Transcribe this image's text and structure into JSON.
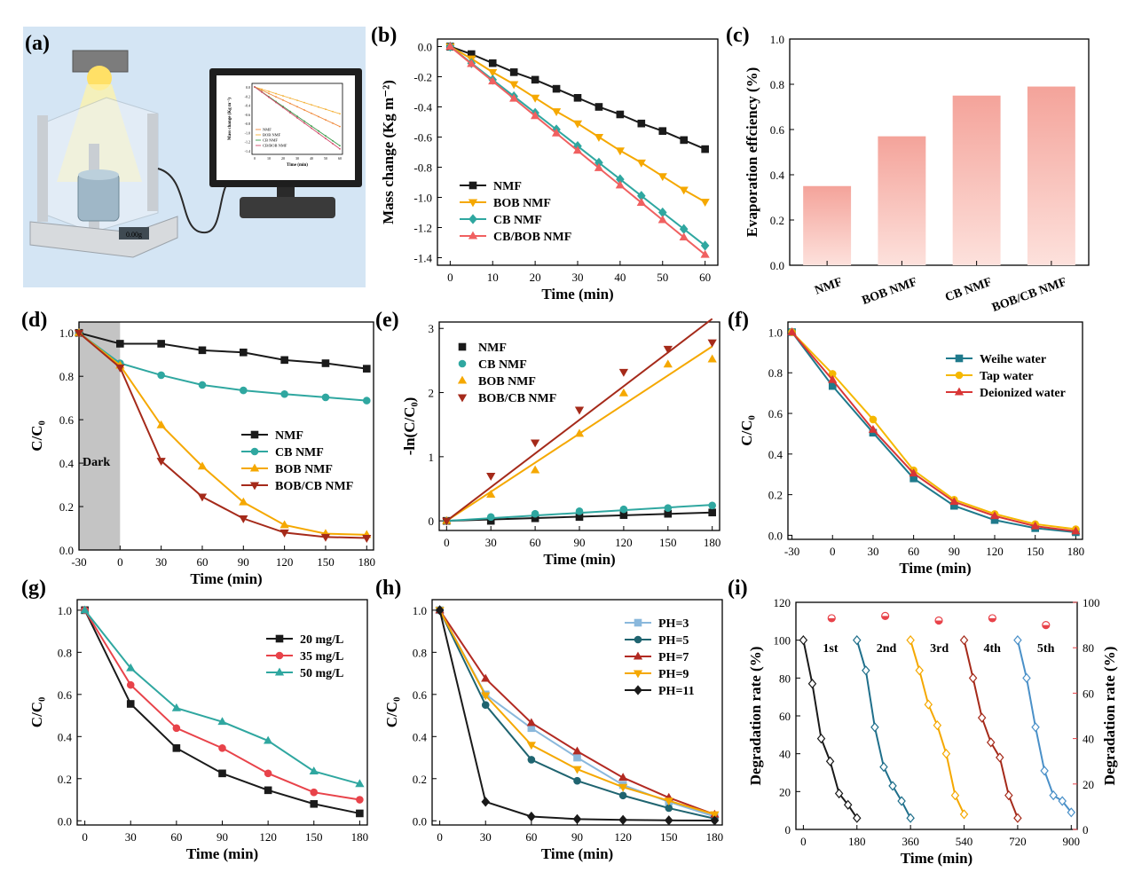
{
  "panel_letters": [
    "(a)",
    "(b)",
    "(c)",
    "(d)",
    "(e)",
    "(f)",
    "(g)",
    "(h)",
    "(i)"
  ],
  "illustration": {
    "balance_display": "0.00g",
    "monitor": {
      "ylabel": "Mass change (Kg m⁻²)",
      "xlabel": "Time (min)",
      "legend": [
        "NMF",
        "BOB NMF",
        "CB NMF",
        "CB/BOB NMF"
      ],
      "yticks": [
        "0.0",
        "-0.2",
        "-0.4",
        "-0.6",
        "-0.8",
        "-1.0",
        "-1.2",
        "-1.4"
      ],
      "xticks": [
        "0",
        "10",
        "20",
        "30",
        "40",
        "50",
        "60"
      ],
      "colors": [
        "#f08a3c",
        "#f4b23a",
        "#3a9a4a",
        "#d24a6a"
      ]
    }
  },
  "chart_data": [
    {
      "id": "b",
      "type": "line",
      "xlabel": "Time (min)",
      "ylabel": "Mass change (Kg m⁻²)",
      "xlim": [
        -3,
        63
      ],
      "ylim": [
        -1.45,
        0.05
      ],
      "xticks": [
        0,
        10,
        20,
        30,
        40,
        50,
        60
      ],
      "yticks": [
        0.0,
        -0.2,
        -0.4,
        -0.6,
        -0.8,
        -1.0,
        -1.2,
        -1.4
      ],
      "ytick_labels": [
        "0.0",
        "-0.2",
        "-0.4",
        "-0.6",
        "-0.8",
        "-1.0",
        "-1.2",
        "-1.4"
      ],
      "legend_position": "bottom-left",
      "series": [
        {
          "name": "NMF",
          "color": "#1a1a1a",
          "marker": "square",
          "x": [
            0,
            5,
            10,
            15,
            20,
            25,
            30,
            35,
            40,
            45,
            50,
            55,
            60
          ],
          "y": [
            0,
            -0.05,
            -0.11,
            -0.17,
            -0.22,
            -0.28,
            -0.34,
            -0.4,
            -0.45,
            -0.51,
            -0.56,
            -0.62,
            -0.68
          ]
        },
        {
          "name": "BOB NMF",
          "color": "#f5a800",
          "marker": "triangle-down",
          "x": [
            0,
            5,
            10,
            15,
            20,
            25,
            30,
            35,
            40,
            45,
            50,
            55,
            60
          ],
          "y": [
            0,
            -0.08,
            -0.17,
            -0.25,
            -0.34,
            -0.43,
            -0.51,
            -0.6,
            -0.69,
            -0.77,
            -0.86,
            -0.95,
            -1.03
          ]
        },
        {
          "name": "CB NMF",
          "color": "#2fa7a0",
          "marker": "diamond",
          "x": [
            0,
            5,
            10,
            15,
            20,
            25,
            30,
            35,
            40,
            45,
            50,
            55,
            60
          ],
          "y": [
            0,
            -0.11,
            -0.22,
            -0.33,
            -0.44,
            -0.55,
            -0.66,
            -0.77,
            -0.88,
            -0.99,
            -1.1,
            -1.21,
            -1.32
          ]
        },
        {
          "name": "CB/BOB NMF",
          "color": "#f06060",
          "marker": "triangle-up",
          "x": [
            0,
            5,
            10,
            15,
            20,
            25,
            30,
            35,
            40,
            45,
            50,
            55,
            60
          ],
          "y": [
            0,
            -0.115,
            -0.23,
            -0.345,
            -0.46,
            -0.575,
            -0.69,
            -0.805,
            -0.92,
            -1.035,
            -1.15,
            -1.265,
            -1.38
          ]
        }
      ]
    },
    {
      "id": "c",
      "type": "bar",
      "ylabel": "Evaporation effciency (%)",
      "ylim": [
        0,
        1.0
      ],
      "yticks": [
        0.0,
        0.2,
        0.4,
        0.6,
        0.8,
        1.0
      ],
      "ytick_labels": [
        "0.0",
        "0.2",
        "0.4",
        "0.6",
        "0.8",
        "1.0"
      ],
      "categories": [
        "NMF",
        "BOB NMF",
        "CB NMF",
        "BOB/CB NMF"
      ],
      "values": [
        0.35,
        0.57,
        0.75,
        0.79
      ],
      "bar_color_top": "#f4a39a",
      "bar_color_bottom": "#fde1dc"
    },
    {
      "id": "d",
      "type": "line",
      "xlabel": "Time (min)",
      "ylabel": "C/C₀",
      "xlim": [
        -30,
        185
      ],
      "ylim": [
        0.0,
        1.05
      ],
      "xticks": [
        -30,
        0,
        30,
        60,
        90,
        120,
        150,
        180
      ],
      "yticks": [
        0.0,
        0.2,
        0.4,
        0.6,
        0.8,
        1.0
      ],
      "ytick_labels": [
        "0.0",
        "0.2",
        "0.4",
        "0.6",
        "0.8",
        "1.0"
      ],
      "shade": {
        "from": -30,
        "to": 0,
        "label": "Dark",
        "color": "#c4c4c4"
      },
      "legend_position": "center-right",
      "series": [
        {
          "name": "NMF",
          "color": "#1a1a1a",
          "marker": "square",
          "x": [
            -30,
            0,
            30,
            60,
            90,
            120,
            150,
            180
          ],
          "y": [
            1.0,
            0.95,
            0.95,
            0.92,
            0.91,
            0.875,
            0.86,
            0.835
          ]
        },
        {
          "name": "CB NMF",
          "color": "#2fa7a0",
          "marker": "circle",
          "x": [
            -30,
            0,
            30,
            60,
            90,
            120,
            150,
            180
          ],
          "y": [
            1.0,
            0.86,
            0.805,
            0.76,
            0.735,
            0.718,
            0.703,
            0.688
          ]
        },
        {
          "name": "BOB NMF",
          "color": "#f5a800",
          "marker": "triangle-up",
          "x": [
            -30,
            0,
            30,
            60,
            90,
            120,
            150,
            180
          ],
          "y": [
            1.0,
            0.85,
            0.575,
            0.385,
            0.22,
            0.115,
            0.075,
            0.07
          ]
        },
        {
          "name": "BOB/CB NMF",
          "color": "#a52a1a",
          "marker": "triangle-down",
          "x": [
            -30,
            0,
            30,
            60,
            90,
            120,
            150,
            180
          ],
          "y": [
            1.0,
            0.84,
            0.41,
            0.245,
            0.145,
            0.08,
            0.06,
            0.055
          ]
        }
      ]
    },
    {
      "id": "e",
      "type": "scatter",
      "xlabel": "Time (min)",
      "ylabel": "-ln(C/C₀)",
      "xlim": [
        -5,
        185
      ],
      "ylim": [
        -0.15,
        3.1
      ],
      "xticks": [
        0,
        30,
        60,
        90,
        120,
        150,
        180
      ],
      "yticks": [
        0,
        1,
        2,
        3
      ],
      "ytick_labels": [
        "0",
        "1",
        "2",
        "3"
      ],
      "legend_position": "top-left",
      "series": [
        {
          "name": "NMF",
          "color": "#1a1a1a",
          "marker": "square",
          "x": [
            0,
            30,
            60,
            90,
            120,
            150,
            180
          ],
          "y": [
            0,
            0.0,
            0.04,
            0.06,
            0.09,
            0.11,
            0.13
          ],
          "fit": [
            0,
            0.13
          ]
        },
        {
          "name": "CB NMF",
          "color": "#2fa7a0",
          "marker": "circle",
          "x": [
            0,
            30,
            60,
            90,
            120,
            150,
            180
          ],
          "y": [
            0,
            0.06,
            0.11,
            0.15,
            0.18,
            0.2,
            0.24
          ],
          "fit": [
            0,
            0.25
          ]
        },
        {
          "name": "BOB NMF",
          "color": "#f5a800",
          "marker": "triangle-up",
          "x": [
            0,
            30,
            60,
            90,
            120,
            150,
            180
          ],
          "y": [
            0,
            0.41,
            0.79,
            1.36,
            1.99,
            2.44,
            2.52
          ],
          "fit": [
            0,
            2.72
          ]
        },
        {
          "name": "BOB/CB NMF",
          "color": "#a52a1a",
          "marker": "triangle-down",
          "x": [
            0,
            30,
            60,
            90,
            120,
            150,
            180
          ],
          "y": [
            0,
            0.7,
            1.22,
            1.73,
            2.32,
            2.68,
            2.78
          ],
          "fit": [
            0,
            3.15
          ]
        }
      ]
    },
    {
      "id": "f",
      "type": "line",
      "xlabel": "Time (min)",
      "ylabel": "C/C₀",
      "xlim": [
        -33,
        185
      ],
      "ylim": [
        -0.02,
        1.05
      ],
      "xticks": [
        -30,
        0,
        30,
        60,
        90,
        120,
        150,
        180
      ],
      "yticks": [
        0.0,
        0.2,
        0.4,
        0.6,
        0.8,
        1.0
      ],
      "ytick_labels": [
        "0.0",
        "0.2",
        "0.4",
        "0.6",
        "0.8",
        "1.0"
      ],
      "legend_position": "top-right",
      "series": [
        {
          "name": "Weihe water",
          "color": "#1f7a8c",
          "marker": "square",
          "x": [
            -30,
            0,
            30,
            60,
            90,
            120,
            150,
            180
          ],
          "y": [
            1.0,
            0.735,
            0.505,
            0.28,
            0.145,
            0.075,
            0.035,
            0.015
          ]
        },
        {
          "name": "Tap water",
          "color": "#f5b800",
          "marker": "circle",
          "x": [
            -30,
            0,
            30,
            60,
            90,
            120,
            150,
            180
          ],
          "y": [
            1.0,
            0.795,
            0.57,
            0.32,
            0.175,
            0.105,
            0.055,
            0.03
          ]
        },
        {
          "name": "Deionized water",
          "color": "#d93636",
          "marker": "triangle-up",
          "x": [
            -30,
            0,
            30,
            60,
            90,
            120,
            150,
            180
          ],
          "y": [
            1.0,
            0.765,
            0.52,
            0.305,
            0.165,
            0.095,
            0.045,
            0.02
          ]
        }
      ]
    },
    {
      "id": "g",
      "type": "line",
      "xlabel": "Time (min)",
      "ylabel": "C/C₀",
      "xlim": [
        -5,
        185
      ],
      "ylim": [
        -0.02,
        1.05
      ],
      "xticks": [
        0,
        30,
        60,
        90,
        120,
        150,
        180
      ],
      "yticks": [
        0.0,
        0.2,
        0.4,
        0.6,
        0.8,
        1.0
      ],
      "ytick_labels": [
        "0.0",
        "0.2",
        "0.4",
        "0.6",
        "0.8",
        "1.0"
      ],
      "legend_position": "top-right",
      "series": [
        {
          "name": "20 mg/L",
          "color": "#1a1a1a",
          "marker": "square",
          "x": [
            0,
            30,
            60,
            90,
            120,
            150,
            180
          ],
          "y": [
            1.0,
            0.555,
            0.345,
            0.225,
            0.145,
            0.08,
            0.035
          ]
        },
        {
          "name": "35 mg/L",
          "color": "#e8434a",
          "marker": "circle",
          "x": [
            0,
            30,
            60,
            90,
            120,
            150,
            180
          ],
          "y": [
            1.0,
            0.645,
            0.44,
            0.345,
            0.225,
            0.135,
            0.1
          ]
        },
        {
          "name": "50 mg/L",
          "color": "#2fa7a0",
          "marker": "triangle-up",
          "x": [
            0,
            30,
            60,
            90,
            120,
            150,
            180
          ],
          "y": [
            1.0,
            0.725,
            0.535,
            0.47,
            0.38,
            0.235,
            0.175
          ]
        }
      ]
    },
    {
      "id": "h",
      "type": "line",
      "xlabel": "Time (min)",
      "ylabel": "C/C₀",
      "xlim": [
        -5,
        185
      ],
      "ylim": [
        -0.02,
        1.05
      ],
      "xticks": [
        0,
        30,
        60,
        90,
        120,
        150,
        180
      ],
      "yticks": [
        0.0,
        0.2,
        0.4,
        0.6,
        0.8,
        1.0
      ],
      "ytick_labels": [
        "0.0",
        "0.2",
        "0.4",
        "0.6",
        "0.8",
        "1.0"
      ],
      "legend_position": "top-right",
      "series": [
        {
          "name": "PH=3",
          "color": "#8ab8dc",
          "marker": "square",
          "x": [
            0,
            30,
            60,
            90,
            120,
            150,
            180
          ],
          "y": [
            1.0,
            0.6,
            0.44,
            0.3,
            0.17,
            0.09,
            0.02
          ]
        },
        {
          "name": "PH=5",
          "color": "#1f6470",
          "marker": "circle",
          "x": [
            0,
            30,
            60,
            90,
            120,
            150,
            180
          ],
          "y": [
            1.0,
            0.55,
            0.29,
            0.19,
            0.12,
            0.06,
            0.01
          ]
        },
        {
          "name": "PH=7",
          "color": "#b22a22",
          "marker": "triangle-up",
          "x": [
            0,
            30,
            60,
            90,
            120,
            150,
            180
          ],
          "y": [
            1.0,
            0.675,
            0.465,
            0.33,
            0.205,
            0.11,
            0.03
          ]
        },
        {
          "name": "PH=9",
          "color": "#f5a800",
          "marker": "triangle-down",
          "x": [
            0,
            30,
            60,
            90,
            120,
            150,
            180
          ],
          "y": [
            1.0,
            0.595,
            0.36,
            0.245,
            0.16,
            0.095,
            0.03
          ]
        },
        {
          "name": "PH=11",
          "color": "#1a1a1a",
          "marker": "diamond",
          "x": [
            0,
            30,
            60,
            90,
            120,
            150,
            180
          ],
          "y": [
            1.0,
            0.09,
            0.02,
            0.008,
            0.004,
            0.002,
            0.001
          ]
        }
      ]
    },
    {
      "id": "i",
      "type": "line",
      "xlabel": "Time (min)",
      "ylabel": "Degradation rate (%)",
      "y2label": "Degradation rate (%)",
      "xlim": [
        -25,
        920
      ],
      "ylim": [
        0,
        120
      ],
      "y2lim": [
        0,
        100
      ],
      "xticks": [
        0,
        180,
        360,
        540,
        720,
        900
      ],
      "yticks": [
        0,
        20,
        40,
        60,
        80,
        100,
        120
      ],
      "ytick_labels": [
        "0",
        "20",
        "40",
        "60",
        "80",
        "100",
        "120"
      ],
      "y2ticks": [
        0,
        20,
        40,
        60,
        80,
        100
      ],
      "y2tick_labels": [
        "0",
        "20",
        "40",
        "60",
        "80",
        "100"
      ],
      "y2color": "#e8434a",
      "cycle_labels": [
        "1st",
        "2nd",
        "3rd",
        "4th",
        "5th"
      ],
      "cycle_color": [
        "#1a1a1a",
        "#1f6f8b",
        "#f5a800",
        "#a52a1a",
        "#4a90c8"
      ],
      "cycles": [
        {
          "x": [
            0,
            30,
            60,
            90,
            120,
            150,
            180
          ],
          "y": [
            100,
            77,
            48,
            36,
            19,
            13,
            6
          ]
        },
        {
          "x": [
            180,
            210,
            240,
            270,
            300,
            330,
            360
          ],
          "y": [
            100,
            84,
            54,
            33,
            23,
            15,
            6
          ]
        },
        {
          "x": [
            360,
            390,
            420,
            450,
            480,
            510,
            540
          ],
          "y": [
            100,
            84,
            66,
            55,
            40,
            18,
            8
          ]
        },
        {
          "x": [
            540,
            570,
            600,
            630,
            660,
            690,
            720
          ],
          "y": [
            100,
            80,
            59,
            46,
            38,
            18,
            6
          ]
        },
        {
          "x": [
            720,
            750,
            780,
            810,
            840,
            870,
            900
          ],
          "y": [
            100,
            80,
            54,
            31,
            18,
            15,
            9
          ]
        }
      ],
      "rate2": {
        "x": [
          95,
          275,
          455,
          635,
          815
        ],
        "y": [
          93,
          94,
          92,
          93,
          90
        ],
        "color": "#e8434a"
      }
    }
  ]
}
